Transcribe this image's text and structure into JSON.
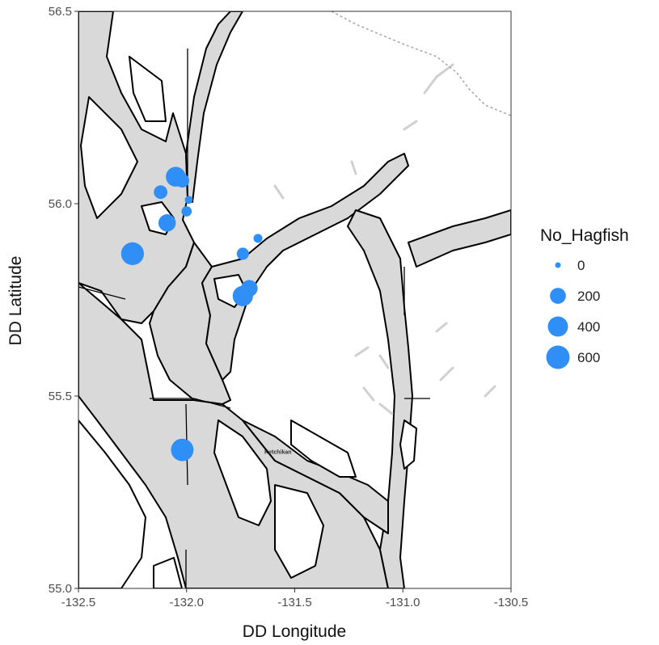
{
  "chart_data": {
    "type": "scatter",
    "subtype": "bubble-map",
    "xlabel": "DD Longitude",
    "ylabel": "DD Latitude",
    "xlim": [
      -132.5,
      -130.5
    ],
    "ylim": [
      55.0,
      56.5
    ],
    "x_ticks": [
      -132.5,
      -132.0,
      -131.5,
      -131.0,
      -130.5
    ],
    "x_tick_labels": [
      "-132.5",
      "-132.0",
      "-131.5",
      "-131.0",
      "-130.5"
    ],
    "y_ticks": [
      55.0,
      55.5,
      56.0,
      56.5
    ],
    "y_tick_labels": [
      "55.0",
      "55.5",
      "56.0",
      "56.5"
    ],
    "grid": false,
    "point_color": "#2f8ff7",
    "water_color": "#d9d9d9",
    "land_color": "#ffffff",
    "place_labels": [
      {
        "text": "Ketchikan",
        "lon": -131.64,
        "lat": 55.35
      }
    ],
    "legend": {
      "title": "No_Hagfish",
      "position": "right",
      "entries": [
        {
          "label": "0",
          "value": 0
        },
        {
          "label": "200",
          "value": 200
        },
        {
          "label": "400",
          "value": 400
        },
        {
          "label": "600",
          "value": 600
        }
      ]
    },
    "points": [
      {
        "lon": -132.05,
        "lat": 56.07,
        "no_hagfish": 380
      },
      {
        "lon": -132.02,
        "lat": 56.06,
        "no_hagfish": 130
      },
      {
        "lon": -132.12,
        "lat": 56.03,
        "no_hagfish": 120
      },
      {
        "lon": -131.99,
        "lat": 56.01,
        "no_hagfish": 10
      },
      {
        "lon": -132.0,
        "lat": 55.98,
        "no_hagfish": 40
      },
      {
        "lon": -132.09,
        "lat": 55.95,
        "no_hagfish": 260
      },
      {
        "lon": -132.25,
        "lat": 55.87,
        "no_hagfish": 560
      },
      {
        "lon": -131.67,
        "lat": 55.91,
        "no_hagfish": 20
      },
      {
        "lon": -131.74,
        "lat": 55.87,
        "no_hagfish": 80
      },
      {
        "lon": -131.71,
        "lat": 55.78,
        "no_hagfish": 230
      },
      {
        "lon": -131.74,
        "lat": 55.76,
        "no_hagfish": 410
      },
      {
        "lon": -132.02,
        "lat": 55.36,
        "no_hagfish": 540
      }
    ]
  }
}
